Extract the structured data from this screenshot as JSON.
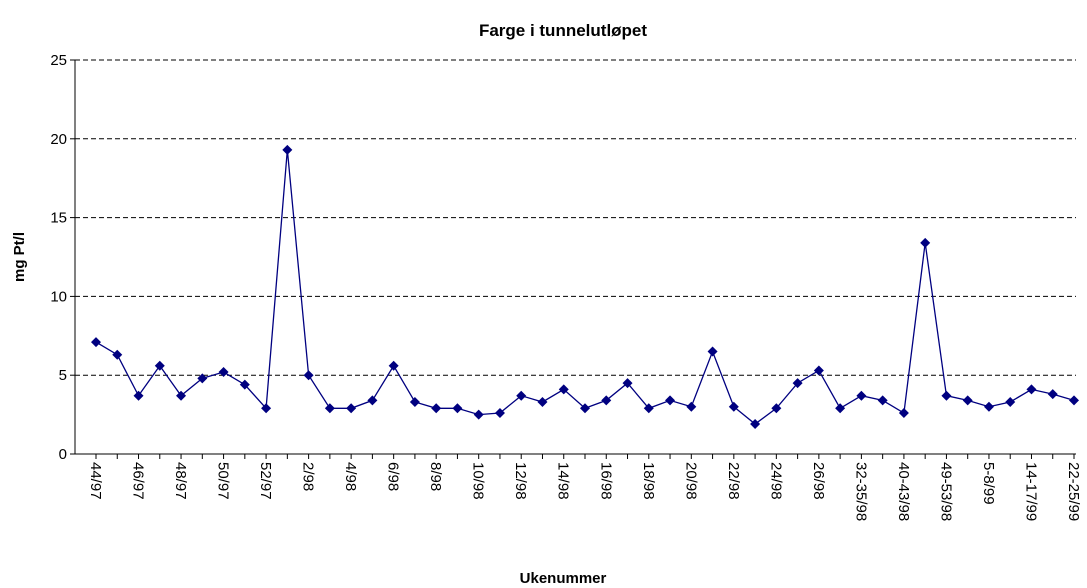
{
  "chart_data": {
    "type": "line",
    "title": "Farge i tunnelutløpet",
    "x_label": "Ukenummer",
    "y_label": "mg Pt/l",
    "categories": [
      "44/97",
      null,
      "46/97",
      null,
      "48/97",
      null,
      "50/97",
      null,
      "52/97",
      null,
      "2/98",
      null,
      "4/98",
      null,
      "6/98",
      null,
      "8/98",
      null,
      "10/98",
      null,
      "12/98",
      null,
      "14/98",
      null,
      "16/98",
      null,
      "18/98",
      null,
      "20/98",
      null,
      "22/98",
      null,
      "24/98",
      null,
      "26/98",
      null,
      "32-35/98",
      null,
      "40-43/98",
      null,
      "49-53/98",
      null,
      "5-8/99",
      null,
      "14-17/99",
      null,
      "22-25/99"
    ],
    "series": [
      {
        "name": "Farge",
        "color": "#000080",
        "values": [
          7.1,
          6.3,
          3.7,
          5.6,
          3.7,
          4.8,
          5.2,
          4.4,
          2.9,
          19.3,
          5.0,
          2.9,
          2.9,
          3.4,
          5.6,
          3.3,
          2.9,
          2.9,
          2.5,
          2.6,
          3.7,
          3.3,
          4.1,
          2.9,
          3.4,
          4.5,
          2.9,
          3.4,
          3.0,
          6.5,
          3.0,
          1.9,
          2.9,
          4.5,
          5.3,
          2.9,
          3.7,
          3.4,
          2.6,
          13.4,
          3.7,
          3.4,
          3.0,
          3.3,
          4.1,
          3.8,
          3.4
        ]
      }
    ],
    "ylim": [
      0,
      25
    ],
    "yticks": [
      0,
      5,
      10,
      15,
      20,
      25
    ],
    "grid": true
  }
}
